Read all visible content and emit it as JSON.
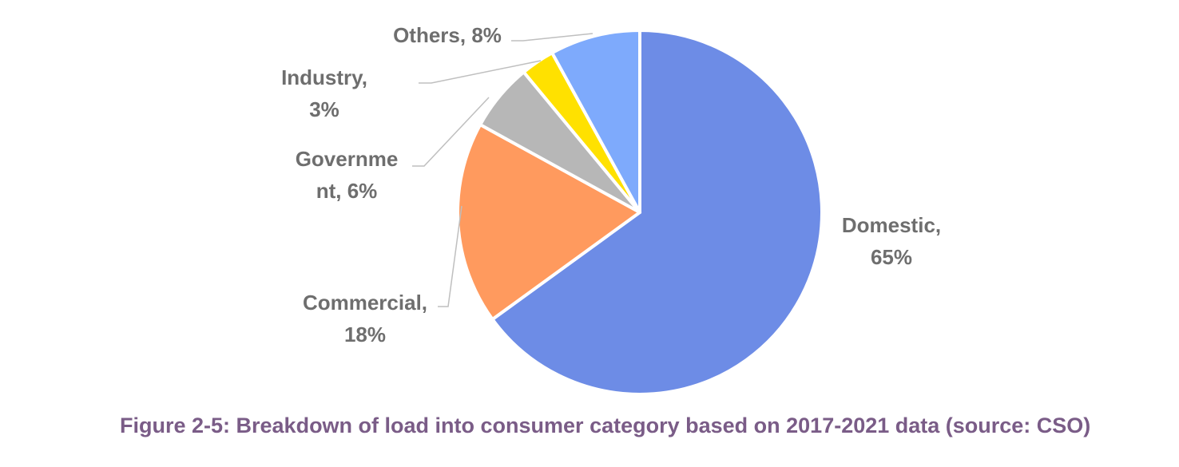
{
  "chart_data": {
    "type": "pie",
    "categories": [
      "Domestic",
      "Commercial",
      "Government",
      "Industry",
      "Others"
    ],
    "values": [
      65,
      18,
      6,
      3,
      8
    ],
    "unit": "%",
    "colors": [
      "#6d8ce6",
      "#ff9a5e",
      "#b7b7b7",
      "#ffe100",
      "#7eaafc"
    ],
    "data_labels": [
      [
        "Domestic,",
        "65%"
      ],
      [
        "Commercial,",
        "18%"
      ],
      [
        "Governme",
        "nt, 6%"
      ],
      [
        "Industry,",
        "3%"
      ],
      [
        "Others, 8%"
      ]
    ],
    "leader_lines": true,
    "legend": "none"
  },
  "caption": "Figure 2-5: Breakdown of load into consumer category based on 2017-2021 data (source: CSO)",
  "colors": {
    "label_text": "#6e6e6e",
    "caption_text": "#7a5c87",
    "leader_line": "#bfbfbf",
    "slice_border": "#ffffff"
  }
}
